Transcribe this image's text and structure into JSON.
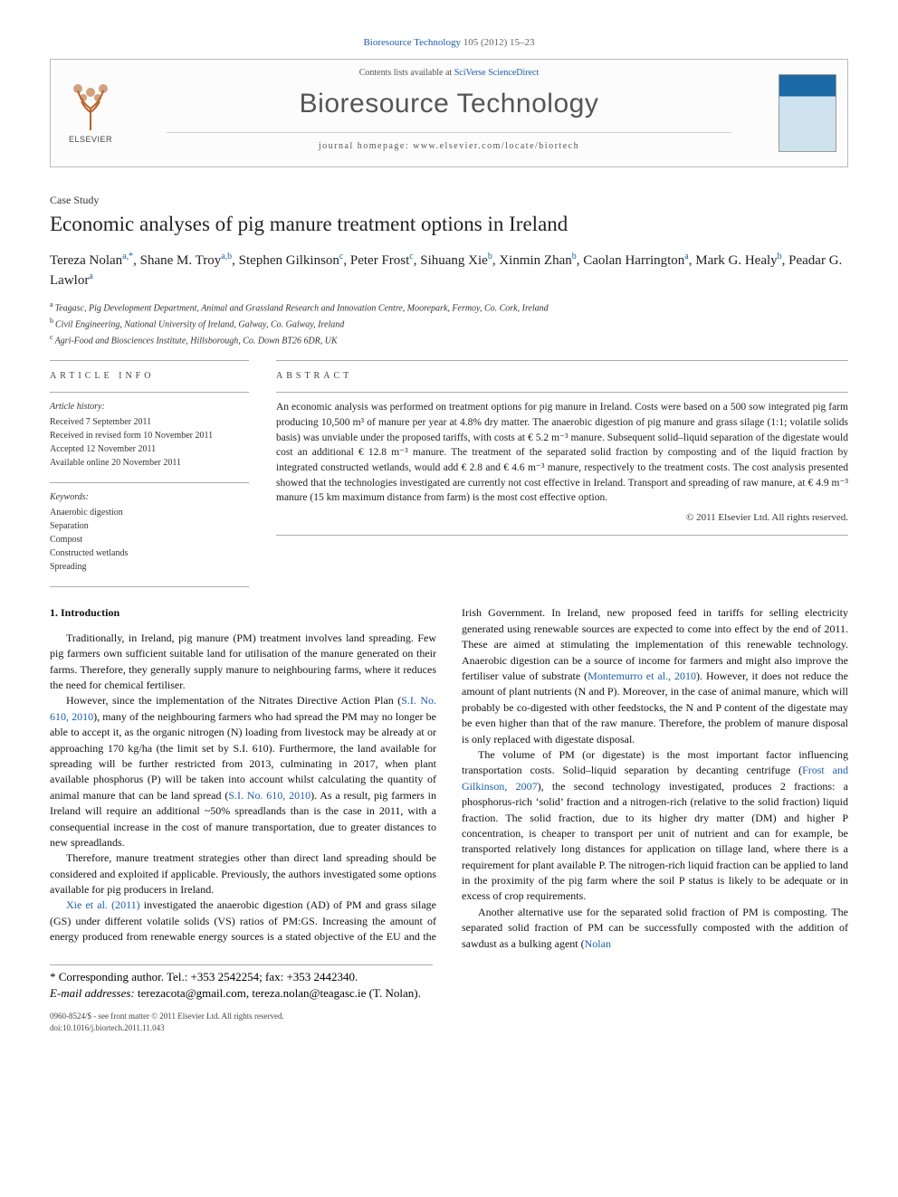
{
  "citation": {
    "journal": "Bioresource Technology",
    "volume_pages": "105 (2012) 15–23",
    "journal_link_text": "Bioresource Technology"
  },
  "header": {
    "elsevier_word": "ELSEVIER",
    "contents_prefix": "Contents lists available at ",
    "contents_source": "SciVerse ScienceDirect",
    "journal_name": "Bioresource Technology",
    "homepage": "journal homepage: www.elsevier.com/locate/biortech"
  },
  "article": {
    "type": "Case Study",
    "title": "Economic analyses of pig manure treatment options in Ireland",
    "authors_html": "Tereza Nolan<sup>a,*</sup>, Shane M. Troy<sup>a,b</sup>, Stephen Gilkinson<sup>c</sup>, Peter Frost<sup>c</sup>, Sihuang Xie<sup>b</sup>, Xinmin Zhan<sup>b</sup>, Caolan Harrington<sup>a</sup>, Mark G. Healy<sup>b</sup>, Peadar G. Lawlor<sup>a</sup>",
    "affiliations": {
      "a": "Teagasc, Pig Development Department, Animal and Grassland Research and Innovation Centre, Moorepark, Fermoy, Co. Cork, Ireland",
      "b": "Civil Engineering, National University of Ireland, Galway, Co. Galway, Ireland",
      "c": "Agri-Food and Biosciences Institute, Hillsborough, Co. Down BT26 6DR, UK"
    }
  },
  "info": {
    "label": "article info",
    "history_heading": "Article history:",
    "history": [
      "Received 7 September 2011",
      "Received in revised form 10 November 2011",
      "Accepted 12 November 2011",
      "Available online 20 November 2011"
    ],
    "keywords_heading": "Keywords:",
    "keywords": [
      "Anaerobic digestion",
      "Separation",
      "Compost",
      "Constructed wetlands",
      "Spreading"
    ]
  },
  "abstract": {
    "label": "abstract",
    "text": "An economic analysis was performed on treatment options for pig manure in Ireland. Costs were based on a 500 sow integrated pig farm producing 10,500 m³ of manure per year at 4.8% dry matter. The anaerobic digestion of pig manure and grass silage (1:1; volatile solids basis) was unviable under the proposed tariffs, with costs at € 5.2 m⁻³ manure. Subsequent solid–liquid separation of the digestate would cost an additional € 12.8 m⁻³ manure. The treatment of the separated solid fraction by composting and of the liquid fraction by integrated constructed wetlands, would add € 2.8 and € 4.6 m⁻³ manure, respectively to the treatment costs. The cost analysis presented showed that the technologies investigated are currently not cost effective in Ireland. Transport and spreading of raw manure, at € 4.9 m⁻³ manure (15 km maximum distance from farm) is the most cost effective option.",
    "copyright": "© 2011 Elsevier Ltd. All rights reserved."
  },
  "body": {
    "h1": "1. Introduction",
    "p1": "Traditionally, in Ireland, pig manure (PM) treatment involves land spreading. Few pig farmers own sufficient suitable land for utilisation of the manure generated on their farms. Therefore, they generally supply manure to neighbouring farms, where it reduces the need for chemical fertiliser.",
    "p2a": "However, since the implementation of the Nitrates Directive Action Plan (",
    "p2link1": "S.I. No. 610, 2010",
    "p2b": "), many of the neighbouring farmers who had spread the PM may no longer be able to accept it, as the organic nitrogen (N) loading from livestock may be already at or approaching 170 kg/ha (the limit set by S.I. 610). Furthermore, the land available for spreading will be further restricted from 2013, culminating in 2017, when plant available phosphorus (P) will be taken into account whilst calculating the quantity of animal manure that can be land spread (",
    "p2link2": "S.I. No. 610, 2010",
    "p2c": "). As a result, pig farmers in Ireland will require an additional ~50% spreadlands than is the case in 2011, with a consequential increase in the cost of manure transportation, due to greater distances to new spreadlands.",
    "p3": "Therefore, manure treatment strategies other than direct land spreading should be considered and exploited if applicable. Previously, the authors investigated some options available for pig producers in Ireland.",
    "p4link": "Xie et al. (2011)",
    "p4": " investigated the anaerobic digestion (AD) of PM and grass silage (GS) under different volatile solids (VS) ratios of ",
    "p5a": "PM:GS. Increasing the amount of energy produced from renewable energy sources is a stated objective of the EU and the Irish Government. In Ireland, new proposed feed in tariffs for selling electricity generated using renewable sources are expected to come into effect by the end of 2011. These are aimed at stimulating the implementation of this renewable technology. Anaerobic digestion can be a source of income for farmers and might also improve the fertiliser value of substrate (",
    "p5link": "Montemurro et al., 2010",
    "p5b": "). However, it does not reduce the amount of plant nutrients (N and P). Moreover, in the case of animal manure, which will probably be co-digested with other feedstocks, the N and P content of the digestate may be even higher than that of the raw manure. Therefore, the problem of manure disposal is only replaced with digestate disposal.",
    "p6a": "The volume of PM (or digestate) is the most important factor influencing transportation costs. Solid–liquid separation by decanting centrifuge (",
    "p6link": "Frost and Gilkinson, 2007",
    "p6b": "), the second technology investigated, produces 2 fractions: a phosphorus-rich ‘solid’ fraction and a nitrogen-rich (relative to the solid fraction) liquid fraction. The solid fraction, due to its higher dry matter (DM) and higher P concentration, is cheaper to transport per unit of nutrient and can for example, be transported relatively long distances for application on tillage land, where there is a requirement for plant available P. The nitrogen-rich liquid fraction can be applied to land in the proximity of the pig farm where the soil P status is likely to be adequate or in excess of crop requirements.",
    "p7a": "Another alternative use for the separated solid fraction of PM is composting. The separated solid fraction of PM can be successfully composted with the addition of sawdust as a bulking agent (",
    "p7link": "Nolan"
  },
  "footer": {
    "corr_label": "* Corresponding author. Tel.: +353 2542254; fax: +353 2442340.",
    "email_label": "E-mail addresses: ",
    "email1": "terezacota@gmail.com",
    "email_sep": ", ",
    "email2": "tereza.nolan@teagasc.ie",
    "email_tail": " (T. Nolan).",
    "issn_line": "0960-8524/$ - see front matter © 2011 Elsevier Ltd. All rights reserved.",
    "doi_line": "doi:10.1016/j.biortech.2011.11.043"
  }
}
